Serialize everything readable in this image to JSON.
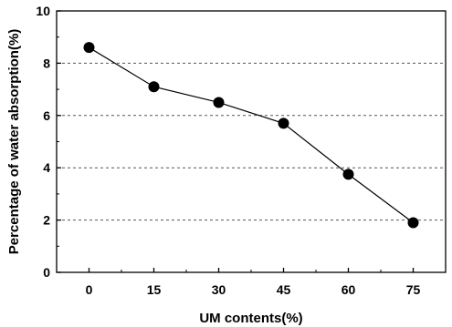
{
  "chart_data": {
    "type": "line",
    "title": "",
    "xlabel": "UM contents(%)",
    "ylabel": "Percentage of water absorption(%)",
    "x": [
      0,
      15,
      30,
      45,
      60,
      75
    ],
    "xlim": [
      -7.5,
      82.5
    ],
    "ylim": [
      0,
      10
    ],
    "xticks": [
      0,
      15,
      30,
      45,
      60,
      75
    ],
    "yticks": [
      0,
      2,
      4,
      6,
      8,
      10
    ],
    "grid": "horizontal dashed at 2, 4, 6, 8",
    "legend": "none",
    "series": [
      {
        "values": [
          8.6,
          7.1,
          6.5,
          5.7,
          3.75,
          1.9
        ],
        "marker": "filled-circle",
        "color": "#000000"
      }
    ]
  }
}
